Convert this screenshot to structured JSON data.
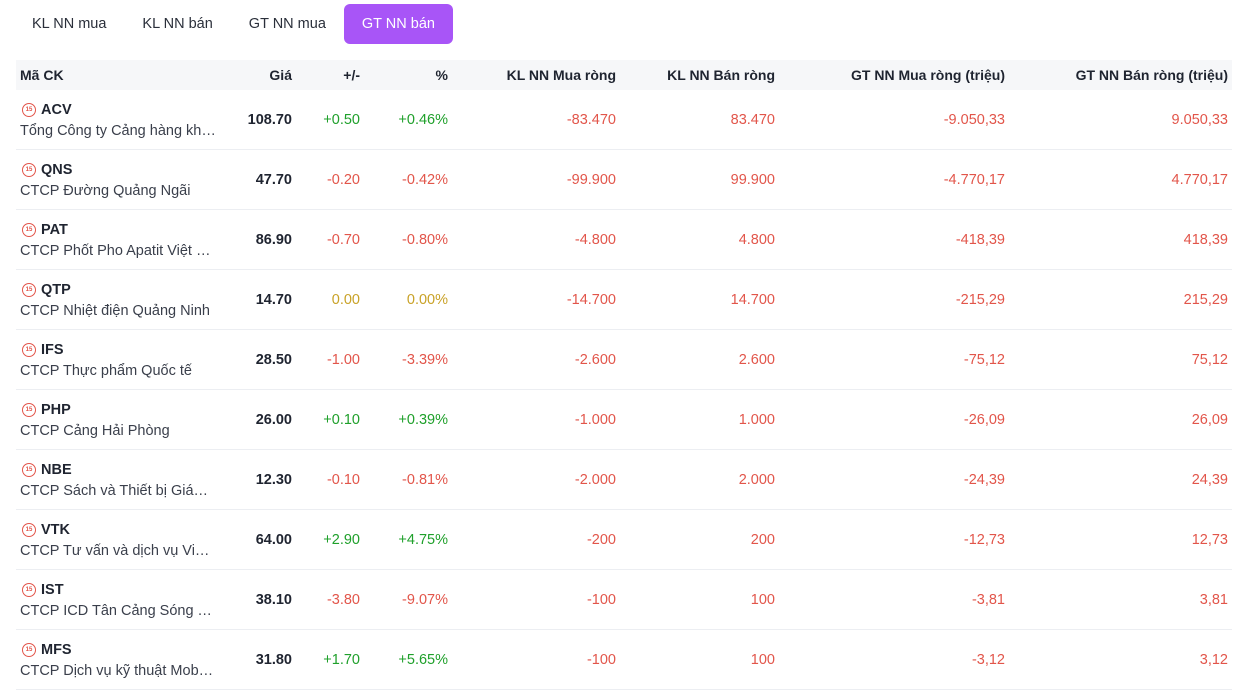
{
  "tabs": [
    {
      "label": "KL NN mua",
      "active": false
    },
    {
      "label": "KL NN bán",
      "active": false
    },
    {
      "label": "GT NN mua",
      "active": false
    },
    {
      "label": "GT NN bán",
      "active": true
    }
  ],
  "table": {
    "headers": {
      "code": "Mã CK",
      "price": "Giá",
      "change": "+/-",
      "pct": "%",
      "kl_buy": "KL NN Mua ròng",
      "kl_sell": "KL NN Bán ròng",
      "gt_buy": "GT NN Mua ròng (triệu)",
      "gt_sell": "GT NN Bán ròng (triệu)"
    },
    "rows": [
      {
        "ticker": "ACV",
        "name": "Tổng Công ty Cảng hàng không Việt Nam",
        "price": "108.70",
        "change": "+0.50",
        "pct": "+0.46%",
        "trend": "up",
        "kl_buy": "-83.470",
        "kl_sell": "83.470",
        "gt_buy": "-9.050,33",
        "gt_sell": "9.050,33"
      },
      {
        "ticker": "QNS",
        "name": "CTCP Đường Quảng Ngãi",
        "price": "47.70",
        "change": "-0.20",
        "pct": "-0.42%",
        "trend": "down",
        "kl_buy": "-99.900",
        "kl_sell": "99.900",
        "gt_buy": "-4.770,17",
        "gt_sell": "4.770,17"
      },
      {
        "ticker": "PAT",
        "name": "CTCP Phốt Pho Apatit Việt Nam",
        "price": "86.90",
        "change": "-0.70",
        "pct": "-0.80%",
        "trend": "down",
        "kl_buy": "-4.800",
        "kl_sell": "4.800",
        "gt_buy": "-418,39",
        "gt_sell": "418,39"
      },
      {
        "ticker": "QTP",
        "name": "CTCP Nhiệt điện Quảng Ninh",
        "price": "14.70",
        "change": "0.00",
        "pct": "0.00%",
        "trend": "flat",
        "kl_buy": "-14.700",
        "kl_sell": "14.700",
        "gt_buy": "-215,29",
        "gt_sell": "215,29"
      },
      {
        "ticker": "IFS",
        "name": "CTCP Thực phẩm Quốc tế",
        "price": "28.50",
        "change": "-1.00",
        "pct": "-3.39%",
        "trend": "down",
        "kl_buy": "-2.600",
        "kl_sell": "2.600",
        "gt_buy": "-75,12",
        "gt_sell": "75,12"
      },
      {
        "ticker": "PHP",
        "name": "CTCP Cảng Hải Phòng",
        "price": "26.00",
        "change": "+0.10",
        "pct": "+0.39%",
        "trend": "up",
        "kl_buy": "-1.000",
        "kl_sell": "1.000",
        "gt_buy": "-26,09",
        "gt_sell": "26,09"
      },
      {
        "ticker": "NBE",
        "name": "CTCP Sách và Thiết bị Giáo dục",
        "price": "12.30",
        "change": "-0.10",
        "pct": "-0.81%",
        "trend": "down",
        "kl_buy": "-2.000",
        "kl_sell": "2.000",
        "gt_buy": "-24,39",
        "gt_sell": "24,39"
      },
      {
        "ticker": "VTK",
        "name": "CTCP Tư vấn và dịch vụ Viettel",
        "price": "64.00",
        "change": "+2.90",
        "pct": "+4.75%",
        "trend": "up",
        "kl_buy": "-200",
        "kl_sell": "200",
        "gt_buy": "-12,73",
        "gt_sell": "12,73"
      },
      {
        "ticker": "IST",
        "name": "CTCP ICD Tân Cảng Sóng Thần",
        "price": "38.10",
        "change": "-3.80",
        "pct": "-9.07%",
        "trend": "down",
        "kl_buy": "-100",
        "kl_sell": "100",
        "gt_buy": "-3,81",
        "gt_sell": "3,81"
      },
      {
        "ticker": "MFS",
        "name": "CTCP Dịch vụ kỹ thuật Mobifone",
        "price": "31.80",
        "change": "+1.70",
        "pct": "+5.65%",
        "trend": "up",
        "kl_buy": "-100",
        "kl_sell": "100",
        "gt_buy": "-3,12",
        "gt_sell": "3,12"
      }
    ]
  }
}
